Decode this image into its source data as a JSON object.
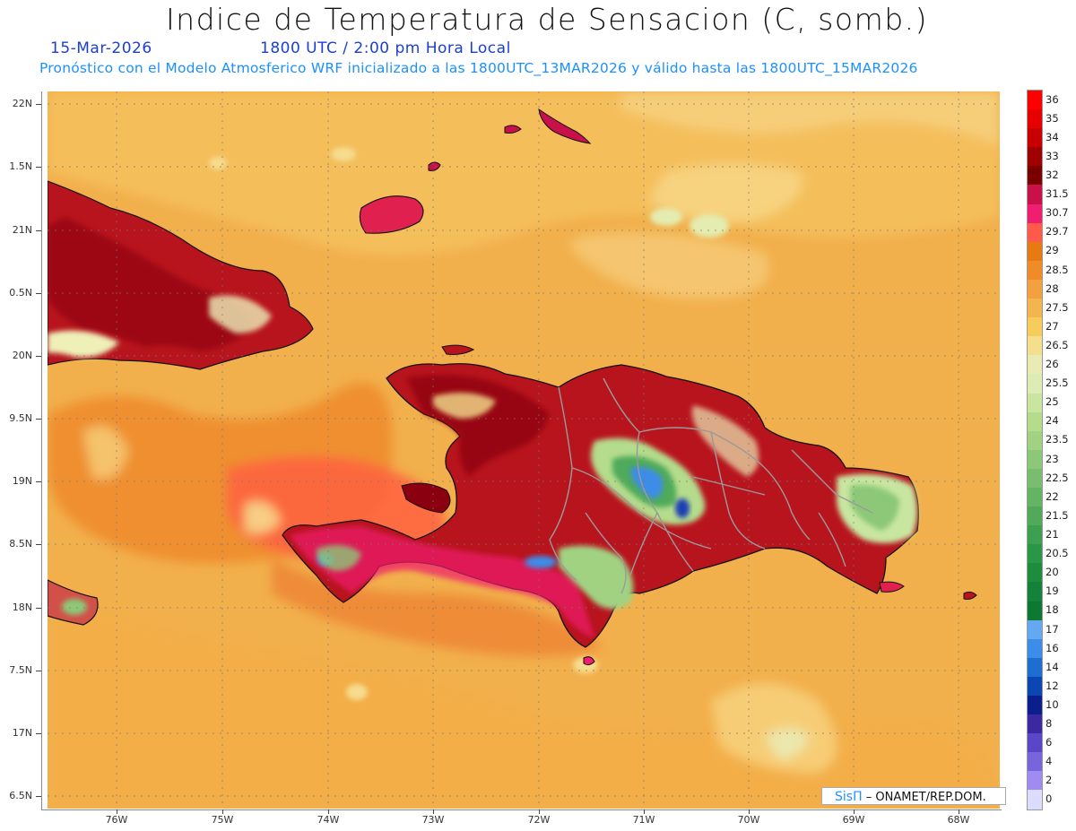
{
  "header": {
    "title": "Indice de Temperatura de Sensacion (C, somb.)",
    "date": "15-Mar-2026",
    "time": "1800 UTC / 2:00 pm Hora Local",
    "subtitle": "Pronóstico con el Modelo Atmosferico WRF inicializado a las 1800UTC_13MAR2026 y válido hasta las  1800UTC_15MAR2026"
  },
  "axes": {
    "y_labels": [
      "22N",
      "1.5N",
      "21N",
      "0.5N",
      "20N",
      "9.5N",
      "19N",
      "8.5N",
      "18N",
      "7.5N",
      "17N",
      "6.5N"
    ],
    "x_labels": [
      "76W",
      "75W",
      "74W",
      "73W",
      "72W",
      "71W",
      "70W",
      "69W",
      "68W"
    ]
  },
  "colorbar": {
    "labels": [
      "36",
      "35",
      "34",
      "33",
      "32",
      "31.5",
      "30.7",
      "29.7",
      "29",
      "28.5",
      "28",
      "27.5",
      "27",
      "26.5",
      "26",
      "25.5",
      "25",
      "24",
      "23.5",
      "23",
      "22.5",
      "22",
      "21.5",
      "21",
      "20.5",
      "20",
      "19",
      "18",
      "17",
      "16",
      "14",
      "12",
      "10",
      "8",
      "6",
      "4",
      "2",
      "0"
    ],
    "colors": [
      "#ff0000",
      "#e60000",
      "#c80000",
      "#a00000",
      "#7a0000",
      "#c8104a",
      "#f01e6e",
      "#ff5a4a",
      "#e87a14",
      "#f08c28",
      "#f2a040",
      "#f4b450",
      "#f6cc5a",
      "#f4e08c",
      "#eaeab4",
      "#dcecb4",
      "#c8e6a0",
      "#b4dc8c",
      "#a0d282",
      "#8cc878",
      "#78be6e",
      "#64b464",
      "#50aa5a",
      "#3ca050",
      "#2a9646",
      "#1e8c3c",
      "#14823a",
      "#0c7832",
      "#64a8f0",
      "#3c8cea",
      "#1e6ed2",
      "#0a46b4",
      "#0a1e8c",
      "#3c28a0",
      "#5a46c8",
      "#7864dc",
      "#a08cf0",
      "#dcdcff"
    ]
  },
  "credit": {
    "logo": "SisΠ",
    "text": " – ONAMET/REP.DOM."
  }
}
